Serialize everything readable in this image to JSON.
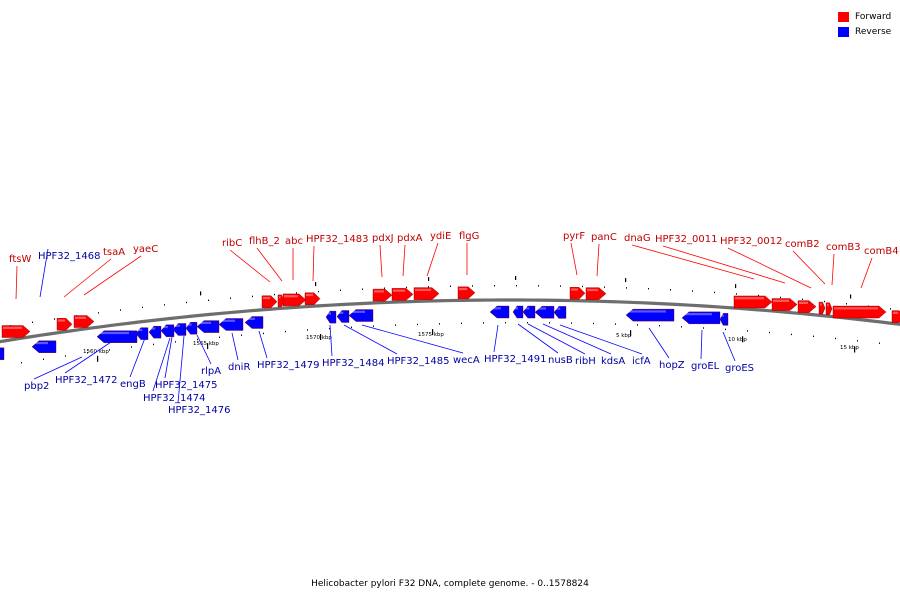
{
  "legend": [
    {
      "label": "Forward",
      "color": "#ff0000"
    },
    {
      "label": "Reverse",
      "color": "#0000ff"
    }
  ],
  "colors": {
    "forward": "#ff0000",
    "reverse": "#0000ff",
    "forward_label": "#c00000",
    "reverse_label": "#0000a0",
    "backbone": "#6e6e6e"
  },
  "caption": "Helicobacter pylori F32 DNA, complete genome. - 0..1578824",
  "scale_labels": [
    "1560 kbp",
    "1565 kbp",
    "1570 kbp",
    "1575 kbp",
    "5 kbp",
    "10 kbp",
    "15 kbp"
  ],
  "forward_genes": [
    "ftsW",
    "tsaA",
    "yaeC",
    "ribC",
    "flhB_2",
    "abc",
    "HPF32_1483",
    "pdxJ",
    "pdxA",
    "ydiE",
    "flgG",
    "pyrF",
    "panC",
    "dnaG",
    "HPF32_0011",
    "HPF32_0012",
    "comB2",
    "comB3",
    "comB4"
  ],
  "reverse_genes": [
    "HPF32_1468",
    "pbp2",
    "HPF32_1472",
    "engB",
    "HPF32_1475",
    "HPF32_1474",
    "HPF32_1476",
    "rlpA",
    "dniR",
    "HPF32_1479",
    "HPF32_1484",
    "HPF32_1485",
    "wecA",
    "HPF32_1491",
    "nusB",
    "ribH",
    "kdsA",
    "icfA",
    "hopZ",
    "groEL",
    "groES"
  ]
}
